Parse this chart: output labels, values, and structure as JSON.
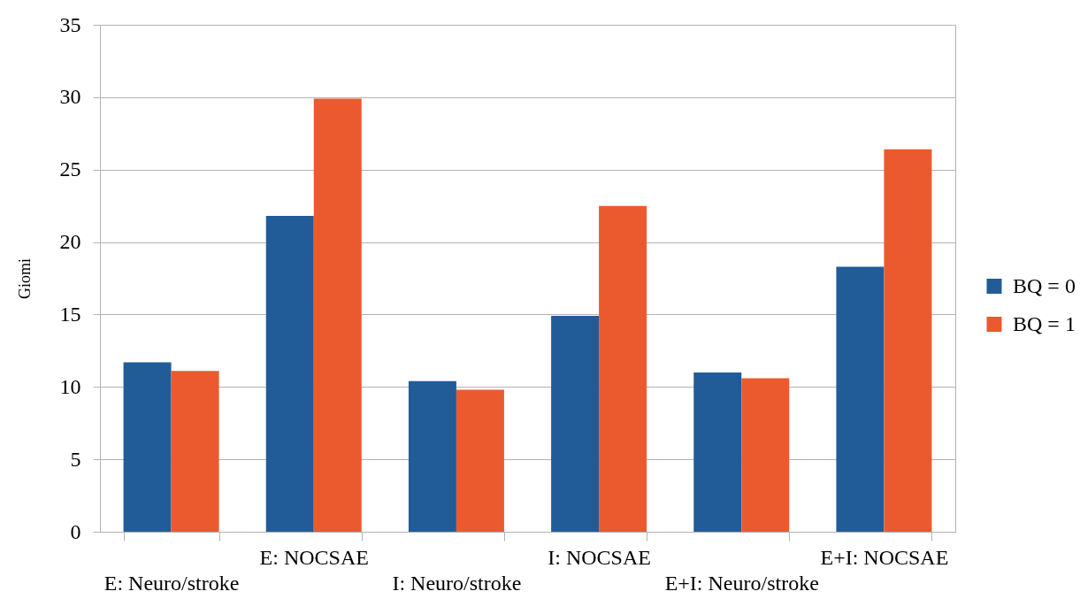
{
  "chart_data": {
    "type": "bar",
    "ylabel": "Giomi",
    "categories": [
      "E: Neuro/stroke",
      "E: NOCSAE",
      "I: Neuro/stroke",
      "I: NOCSAE",
      "E+I: Neuro/stroke",
      "E+I: NOCSAE"
    ],
    "series": [
      {
        "name": "BQ = 0",
        "color": "#215c98",
        "values": [
          11.7,
          21.8,
          10.4,
          14.9,
          11.0,
          18.3
        ]
      },
      {
        "name": "BQ = 1",
        "color": "#eb5a2e",
        "values": [
          11.1,
          29.9,
          9.8,
          22.5,
          10.6,
          26.4
        ]
      }
    ],
    "ylim": [
      0,
      35
    ],
    "yticks": [
      0,
      5,
      10,
      15,
      20,
      25,
      30,
      35
    ],
    "grid": "y",
    "legend": "right"
  }
}
